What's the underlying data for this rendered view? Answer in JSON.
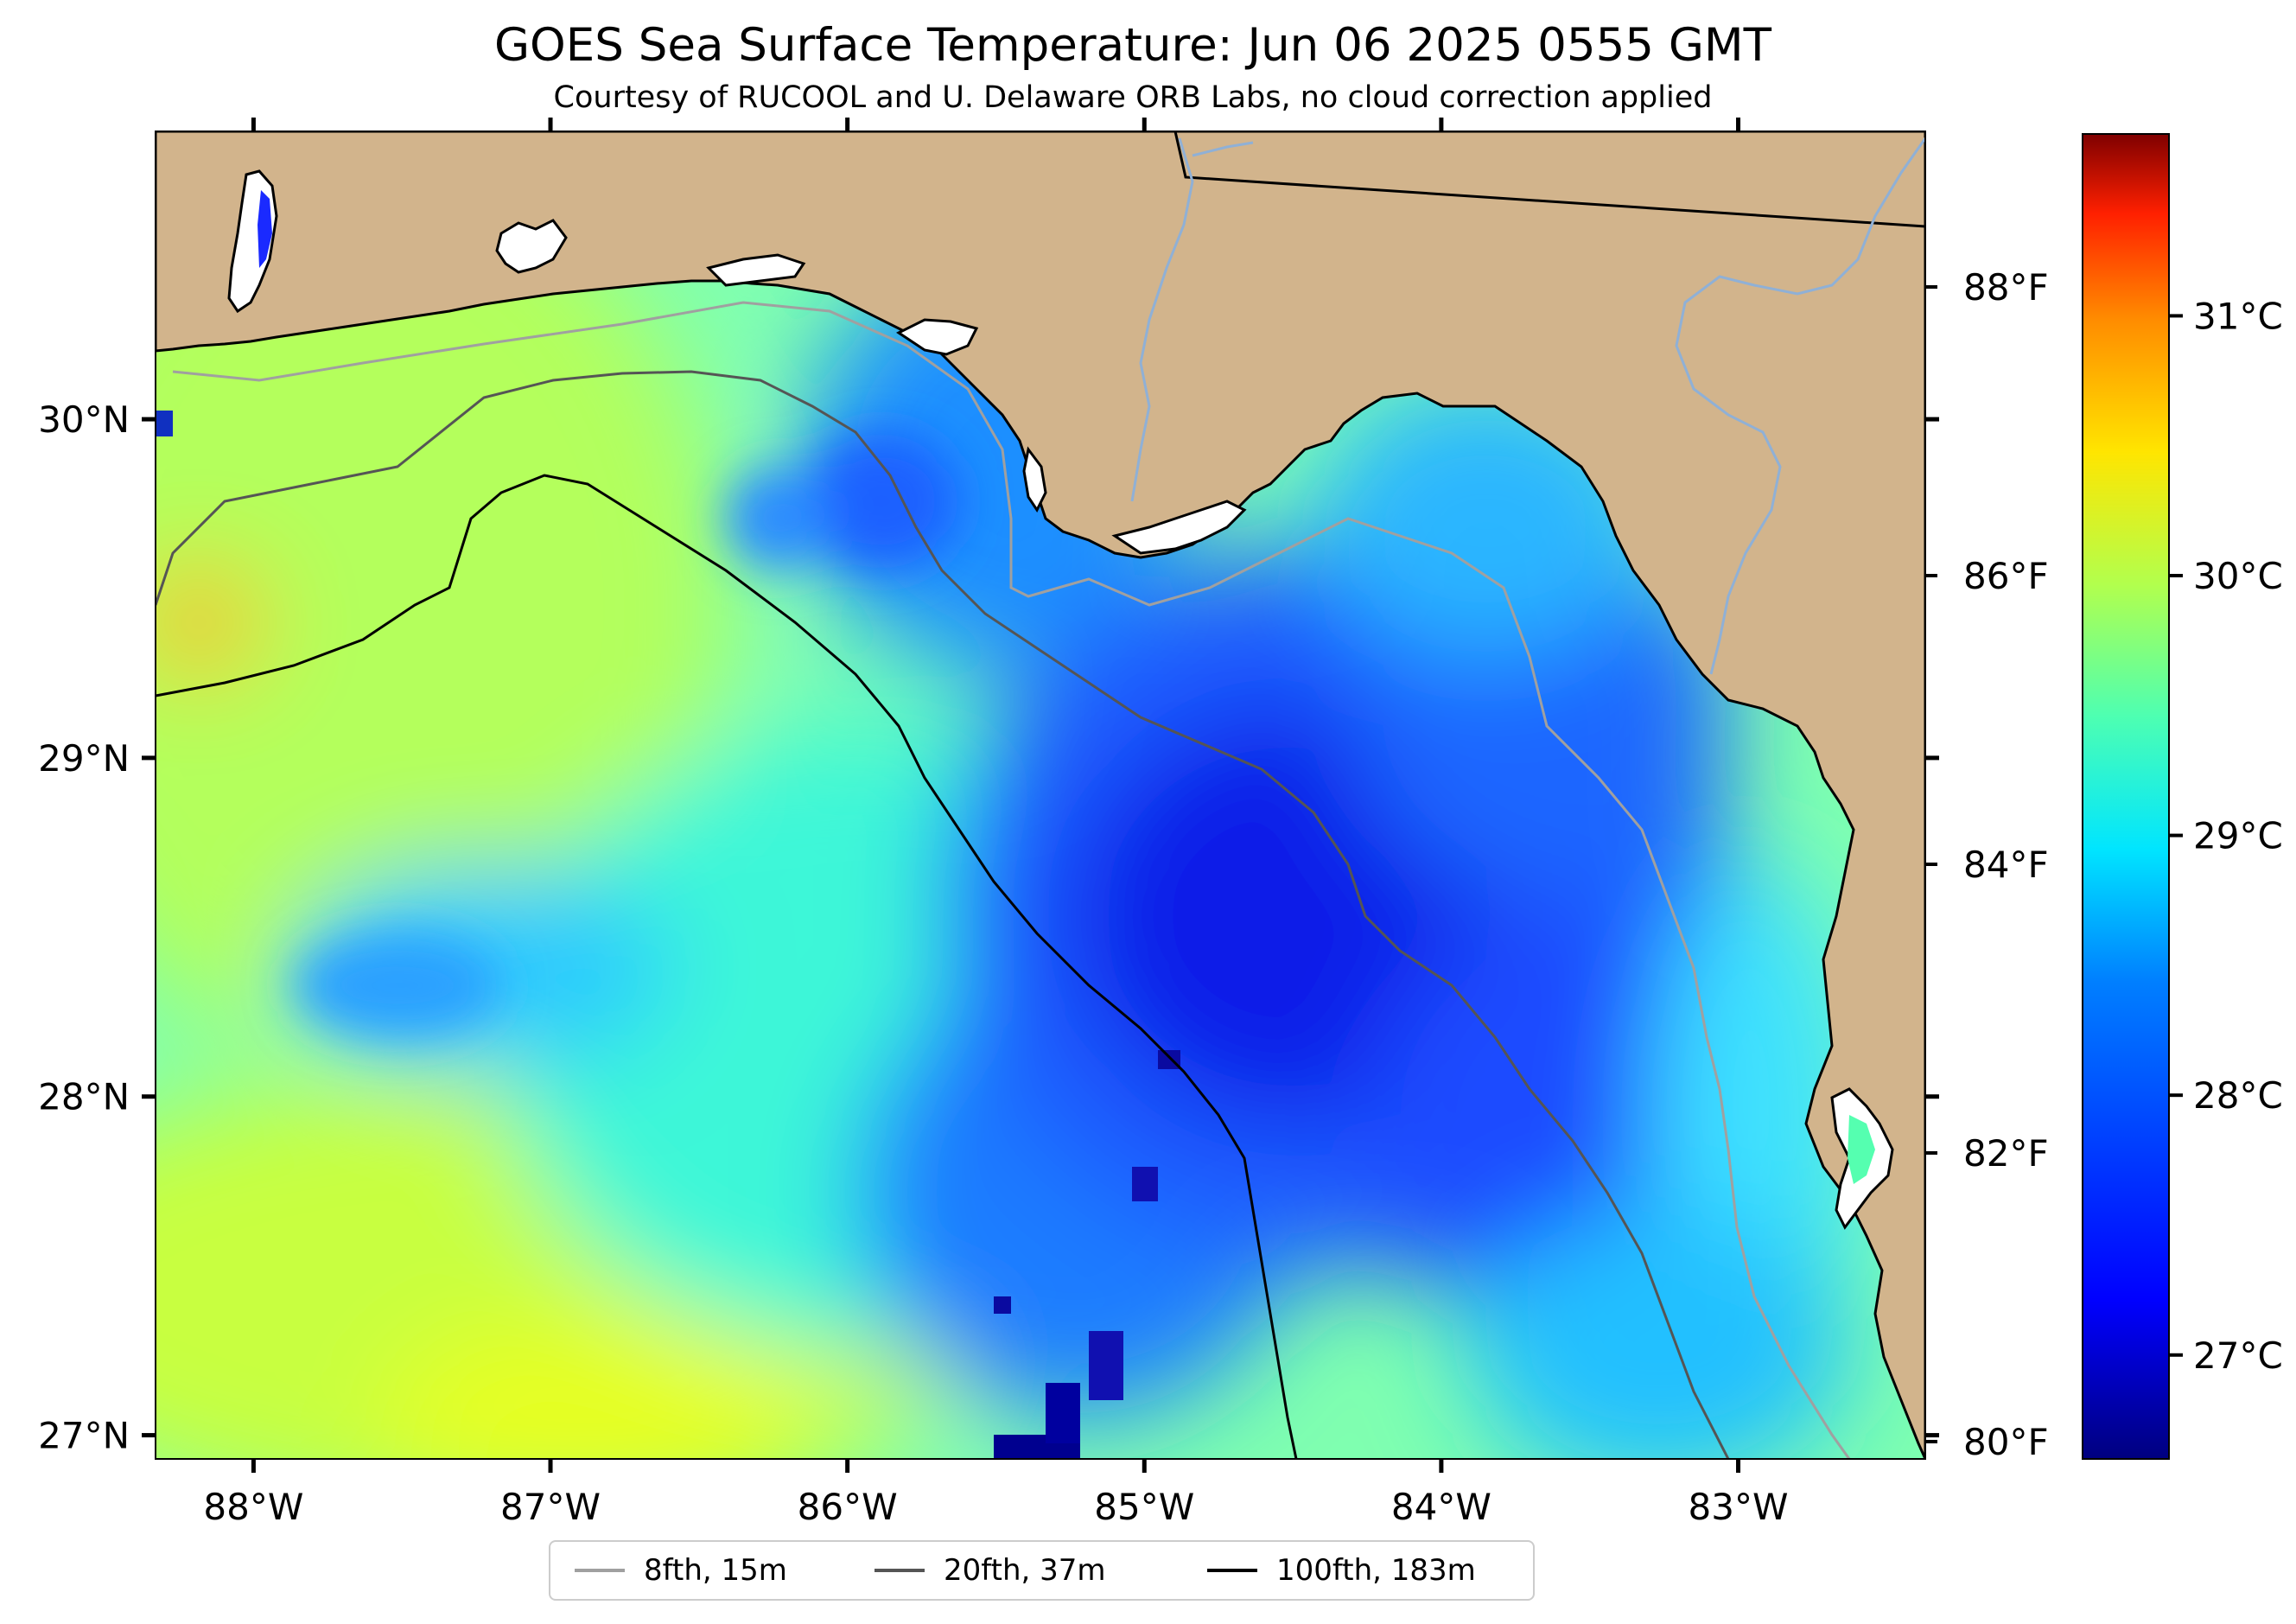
{
  "title": "GOES Sea Surface Temperature: Jun 06 2025 0555 GMT",
  "subtitle": "Courtesy of RUCOOL and U. Delaware ORB Labs, no cloud correction applied",
  "map": {
    "lon_range": [
      -88.33,
      -82.37
    ],
    "lat_range": [
      26.93,
      30.85
    ],
    "lon_ticks": [
      {
        "value": -88,
        "label": "88°W"
      },
      {
        "value": -87,
        "label": "87°W"
      },
      {
        "value": -86,
        "label": "86°W"
      },
      {
        "value": -85,
        "label": "85°W"
      },
      {
        "value": -84,
        "label": "84°W"
      },
      {
        "value": -83,
        "label": "83°W"
      }
    ],
    "lat_ticks": [
      {
        "value": 30,
        "label": "30°N"
      },
      {
        "value": 29,
        "label": "29°N"
      },
      {
        "value": 28,
        "label": "28°N"
      },
      {
        "value": 27,
        "label": "27°N"
      }
    ]
  },
  "fahrenheit_axis": {
    "ticks": [
      {
        "value": 88,
        "label": "88°F"
      },
      {
        "value": 86,
        "label": "86°F"
      },
      {
        "value": 84,
        "label": "84°F"
      },
      {
        "value": 82,
        "label": "82°F"
      },
      {
        "value": 80,
        "label": "80°F"
      }
    ]
  },
  "colorbar": {
    "range_c": [
      26.6,
      31.7
    ],
    "ticks": [
      {
        "value": 31,
        "label": "31°C"
      },
      {
        "value": 30,
        "label": "30°C"
      },
      {
        "value": 29,
        "label": "29°C"
      },
      {
        "value": 28,
        "label": "28°C"
      },
      {
        "value": 27,
        "label": "27°C"
      }
    ]
  },
  "legend": [
    {
      "label": "8fth, 15m",
      "color": "#a0a0a0"
    },
    {
      "label": "20fth, 37m",
      "color": "#555555"
    },
    {
      "label": "100fth, 183m",
      "color": "#000000"
    }
  ],
  "colors": {
    "land": "#d2b48c",
    "river": "#8fb0d6",
    "nodata": "#ffffff"
  }
}
